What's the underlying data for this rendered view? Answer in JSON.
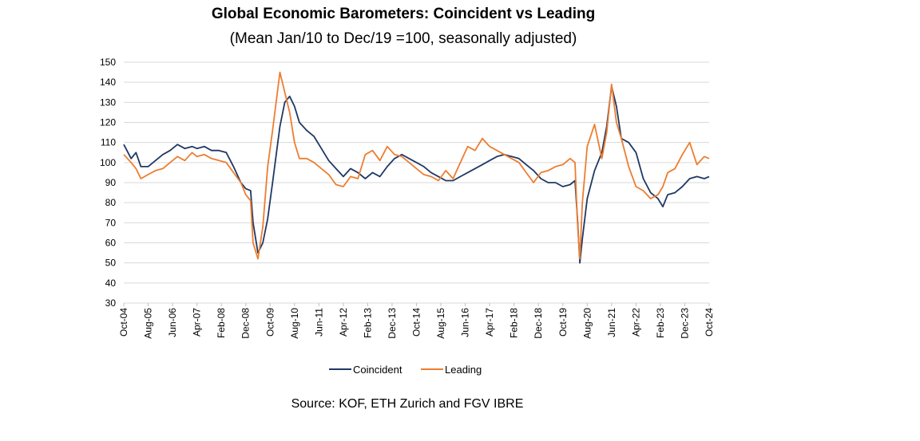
{
  "chart_data": {
    "type": "line",
    "title": "Global Economic Barometers: Coincident vs Leading",
    "subtitle": "(Mean Jan/10 to Dec/19 =100, seasonally adjusted)",
    "source": "Source: KOF, ETH Zurich and FGV IBRE",
    "xlabel": "",
    "ylabel": "",
    "ylim": [
      30,
      150
    ],
    "yticks": [
      30,
      40,
      50,
      60,
      70,
      80,
      90,
      100,
      110,
      120,
      130,
      140,
      150
    ],
    "grid": true,
    "legend_position": "bottom",
    "x_tick_labels": [
      "Oct-04",
      "Aug-05",
      "Jun-06",
      "Apr-07",
      "Feb-08",
      "Dec-08",
      "Oct-09",
      "Aug-10",
      "Jun-11",
      "Apr-12",
      "Feb-13",
      "Dec-13",
      "Oct-14",
      "Aug-15",
      "Jun-16",
      "Apr-17",
      "Feb-18",
      "Dec-18",
      "Oct-19",
      "Aug-20",
      "Jun-21",
      "Apr-22",
      "Feb-23",
      "Dec-23",
      "Oct-24"
    ],
    "x_start": "Oct-04",
    "x_end": "Oct-24",
    "series": [
      {
        "name": "Coincident",
        "color": "#1f3864",
        "points": [
          [
            "Oct-04",
            109
          ],
          [
            "Jan-05",
            102
          ],
          [
            "Mar-05",
            105
          ],
          [
            "May-05",
            98
          ],
          [
            "Aug-05",
            98
          ],
          [
            "Nov-05",
            101
          ],
          [
            "Feb-06",
            104
          ],
          [
            "May-06",
            106
          ],
          [
            "Aug-06",
            109
          ],
          [
            "Nov-06",
            107
          ],
          [
            "Feb-07",
            108
          ],
          [
            "Apr-07",
            107
          ],
          [
            "Jul-07",
            108
          ],
          [
            "Oct-07",
            106
          ],
          [
            "Jan-08",
            106
          ],
          [
            "Apr-08",
            105
          ],
          [
            "Jul-08",
            98
          ],
          [
            "Oct-08",
            90
          ],
          [
            "Dec-08",
            87
          ],
          [
            "Feb-09",
            86
          ],
          [
            "Mar-09",
            70
          ],
          [
            "May-09",
            55
          ],
          [
            "Jul-09",
            60
          ],
          [
            "Sep-09",
            72
          ],
          [
            "Nov-09",
            90
          ],
          [
            "Feb-10",
            118
          ],
          [
            "Apr-10",
            130
          ],
          [
            "Jun-10",
            133
          ],
          [
            "Aug-10",
            128
          ],
          [
            "Oct-10",
            120
          ],
          [
            "Jan-11",
            116
          ],
          [
            "Apr-11",
            113
          ],
          [
            "Jul-11",
            107
          ],
          [
            "Oct-11",
            101
          ],
          [
            "Jan-12",
            97
          ],
          [
            "Apr-12",
            93
          ],
          [
            "Jul-12",
            97
          ],
          [
            "Oct-12",
            95
          ],
          [
            "Jan-13",
            92
          ],
          [
            "Apr-13",
            95
          ],
          [
            "Jul-13",
            93
          ],
          [
            "Oct-13",
            98
          ],
          [
            "Jan-14",
            102
          ],
          [
            "Apr-14",
            104
          ],
          [
            "Jul-14",
            102
          ],
          [
            "Oct-14",
            100
          ],
          [
            "Jan-15",
            98
          ],
          [
            "Apr-15",
            95
          ],
          [
            "Jul-15",
            93
          ],
          [
            "Oct-15",
            91
          ],
          [
            "Jan-16",
            91
          ],
          [
            "Apr-16",
            93
          ],
          [
            "Jul-16",
            95
          ],
          [
            "Oct-16",
            97
          ],
          [
            "Jan-17",
            99
          ],
          [
            "Apr-17",
            101
          ],
          [
            "Jul-17",
            103
          ],
          [
            "Oct-17",
            104
          ],
          [
            "Jan-18",
            103
          ],
          [
            "Apr-18",
            102
          ],
          [
            "Jul-18",
            99
          ],
          [
            "Oct-18",
            96
          ],
          [
            "Jan-19",
            92
          ],
          [
            "Apr-19",
            90
          ],
          [
            "Jul-19",
            90
          ],
          [
            "Oct-19",
            88
          ],
          [
            "Jan-20",
            89
          ],
          [
            "Mar-20",
            91
          ],
          [
            "Apr-20",
            72
          ],
          [
            "May-20",
            50
          ],
          [
            "Jun-20",
            62
          ],
          [
            "Aug-20",
            82
          ],
          [
            "Nov-20",
            96
          ],
          [
            "Feb-21",
            105
          ],
          [
            "Apr-21",
            118
          ],
          [
            "Jun-21",
            138
          ],
          [
            "Aug-21",
            128
          ],
          [
            "Oct-21",
            112
          ],
          [
            "Jan-22",
            110
          ],
          [
            "Apr-22",
            105
          ],
          [
            "Jul-22",
            92
          ],
          [
            "Oct-22",
            85
          ],
          [
            "Jan-23",
            82
          ],
          [
            "Mar-23",
            78
          ],
          [
            "May-23",
            84
          ],
          [
            "Aug-23",
            85
          ],
          [
            "Nov-23",
            88
          ],
          [
            "Feb-24",
            92
          ],
          [
            "May-24",
            93
          ],
          [
            "Aug-24",
            92
          ],
          [
            "Oct-24",
            93
          ]
        ]
      },
      {
        "name": "Leading",
        "color": "#ed7d31",
        "points": [
          [
            "Oct-04",
            104
          ],
          [
            "Jan-05",
            100
          ],
          [
            "Mar-05",
            97
          ],
          [
            "May-05",
            92
          ],
          [
            "Aug-05",
            94
          ],
          [
            "Nov-05",
            96
          ],
          [
            "Feb-06",
            97
          ],
          [
            "May-06",
            100
          ],
          [
            "Aug-06",
            103
          ],
          [
            "Nov-06",
            101
          ],
          [
            "Feb-07",
            105
          ],
          [
            "Apr-07",
            103
          ],
          [
            "Jul-07",
            104
          ],
          [
            "Oct-07",
            102
          ],
          [
            "Jan-08",
            101
          ],
          [
            "Apr-08",
            100
          ],
          [
            "Jul-08",
            95
          ],
          [
            "Oct-08",
            90
          ],
          [
            "Dec-08",
            84
          ],
          [
            "Feb-09",
            81
          ],
          [
            "Mar-09",
            60
          ],
          [
            "May-09",
            52
          ],
          [
            "Jul-09",
            68
          ],
          [
            "Sep-09",
            98
          ],
          [
            "Nov-09",
            116
          ],
          [
            "Feb-10",
            145
          ],
          [
            "Apr-10",
            135
          ],
          [
            "Jun-10",
            125
          ],
          [
            "Aug-10",
            110
          ],
          [
            "Oct-10",
            102
          ],
          [
            "Jan-11",
            102
          ],
          [
            "Apr-11",
            100
          ],
          [
            "Jul-11",
            97
          ],
          [
            "Oct-11",
            94
          ],
          [
            "Jan-12",
            89
          ],
          [
            "Apr-12",
            88
          ],
          [
            "Jul-12",
            93
          ],
          [
            "Oct-12",
            92
          ],
          [
            "Jan-13",
            104
          ],
          [
            "Apr-13",
            106
          ],
          [
            "Jul-13",
            101
          ],
          [
            "Oct-13",
            108
          ],
          [
            "Jan-14",
            104
          ],
          [
            "Apr-14",
            103
          ],
          [
            "Jul-14",
            100
          ],
          [
            "Oct-14",
            97
          ],
          [
            "Jan-15",
            94
          ],
          [
            "Apr-15",
            93
          ],
          [
            "Jul-15",
            91
          ],
          [
            "Oct-15",
            96
          ],
          [
            "Jan-16",
            92
          ],
          [
            "Apr-16",
            100
          ],
          [
            "Jul-16",
            108
          ],
          [
            "Oct-16",
            106
          ],
          [
            "Jan-17",
            112
          ],
          [
            "Apr-17",
            108
          ],
          [
            "Jul-17",
            106
          ],
          [
            "Oct-17",
            104
          ],
          [
            "Jan-18",
            102
          ],
          [
            "Apr-18",
            100
          ],
          [
            "Jul-18",
            95
          ],
          [
            "Oct-18",
            90
          ],
          [
            "Jan-19",
            95
          ],
          [
            "Apr-19",
            96
          ],
          [
            "Jul-19",
            98
          ],
          [
            "Oct-19",
            99
          ],
          [
            "Jan-20",
            102
          ],
          [
            "Mar-20",
            100
          ],
          [
            "Apr-20",
            70
          ],
          [
            "May-20",
            52
          ],
          [
            "Jun-20",
            80
          ],
          [
            "Aug-20",
            108
          ],
          [
            "Nov-20",
            119
          ],
          [
            "Feb-21",
            102
          ],
          [
            "Apr-21",
            115
          ],
          [
            "Jun-21",
            139
          ],
          [
            "Aug-21",
            120
          ],
          [
            "Oct-21",
            112
          ],
          [
            "Jan-22",
            98
          ],
          [
            "Apr-22",
            88
          ],
          [
            "Jul-22",
            86
          ],
          [
            "Oct-22",
            82
          ],
          [
            "Jan-23",
            84
          ],
          [
            "Mar-23",
            88
          ],
          [
            "May-23",
            95
          ],
          [
            "Aug-23",
            97
          ],
          [
            "Nov-23",
            104
          ],
          [
            "Feb-24",
            110
          ],
          [
            "May-24",
            99
          ],
          [
            "Aug-24",
            103
          ],
          [
            "Oct-24",
            102
          ]
        ]
      }
    ]
  }
}
